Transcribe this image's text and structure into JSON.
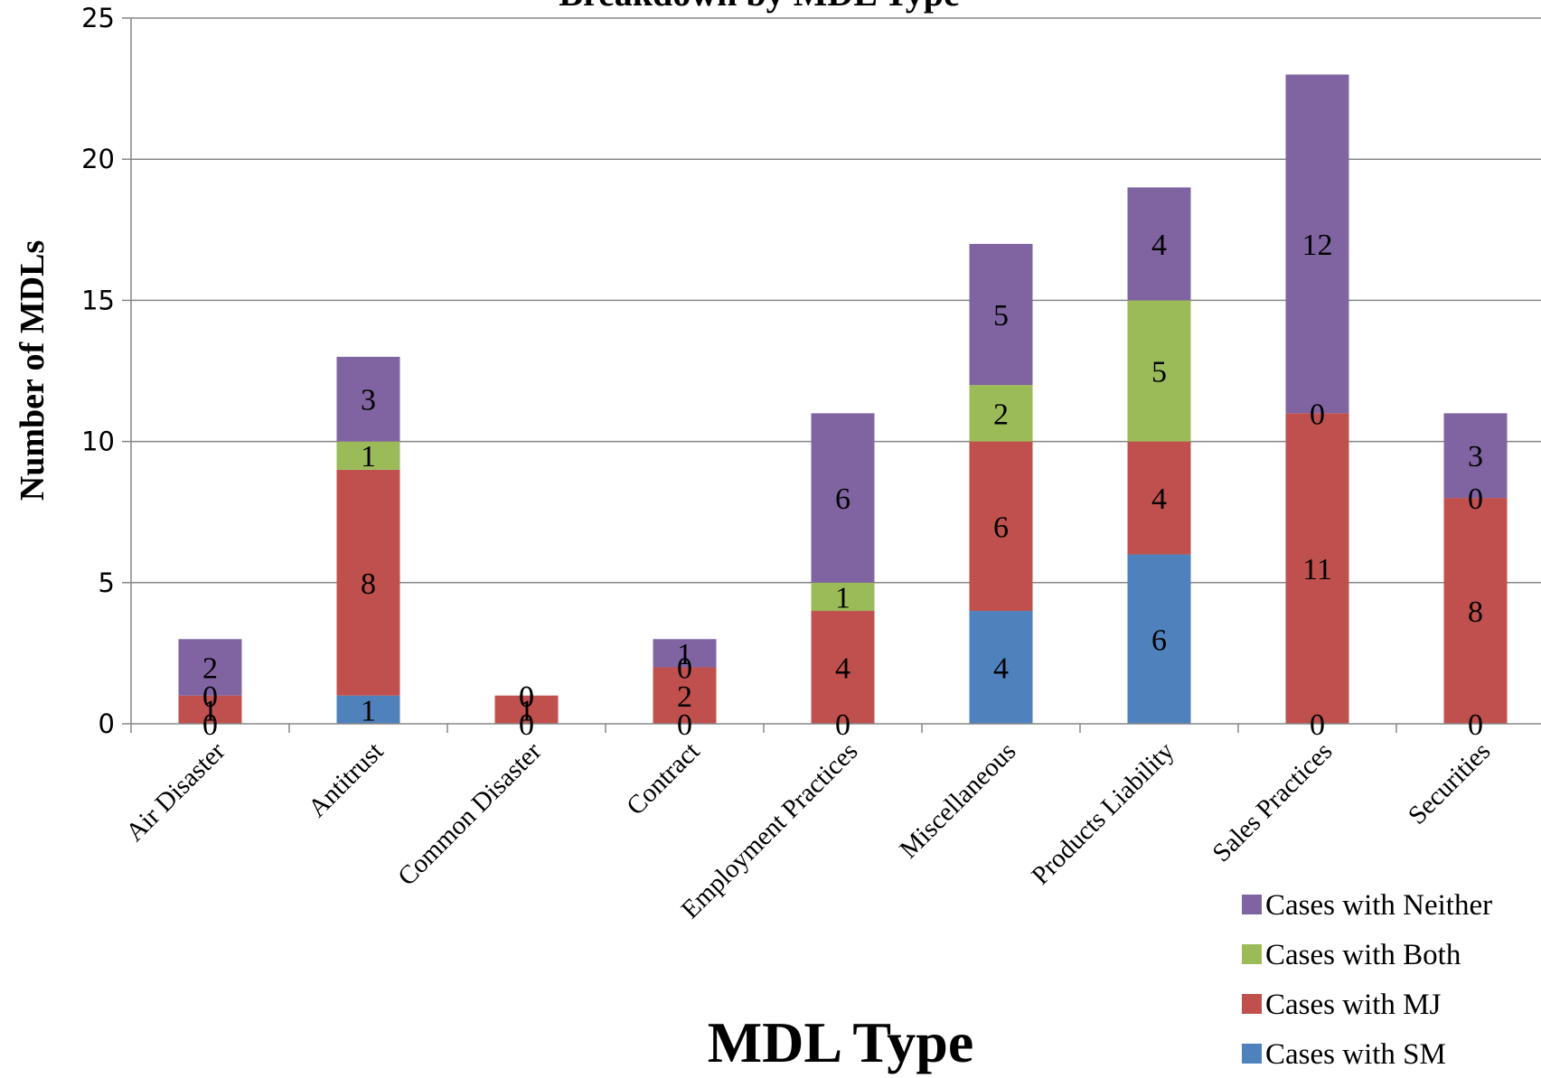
{
  "chart_data": {
    "type": "bar",
    "stacked": true,
    "title": "Breakdown by MDL Type",
    "xlabel": "MDL Type",
    "ylabel": "Number of MDLs",
    "ylim": [
      0,
      25
    ],
    "yticks": [
      0,
      5,
      10,
      15,
      20,
      25
    ],
    "grid": true,
    "legend_position": "bottom-right",
    "categories": [
      "Air Disaster",
      "Antitrust",
      "Common Disaster",
      "Contract",
      "Employment Practices",
      "Miscellaneous",
      "Products Liability",
      "Sales Practices",
      "Securities"
    ],
    "series": [
      {
        "name": "Cases with SM",
        "color": "#4F81BD",
        "values": [
          0,
          1,
          0,
          0,
          0,
          4,
          6,
          0,
          0
        ]
      },
      {
        "name": "Cases with MJ",
        "color": "#C0504D",
        "values": [
          1,
          8,
          1,
          2,
          4,
          6,
          4,
          11,
          8
        ]
      },
      {
        "name": "Cases with Both",
        "color": "#9BBB59",
        "values": [
          0,
          1,
          0,
          0,
          1,
          2,
          5,
          0,
          0
        ]
      },
      {
        "name": "Cases with Neither",
        "color": "#8064A2",
        "values": [
          2,
          3,
          0,
          1,
          6,
          5,
          4,
          12,
          3
        ]
      }
    ]
  }
}
